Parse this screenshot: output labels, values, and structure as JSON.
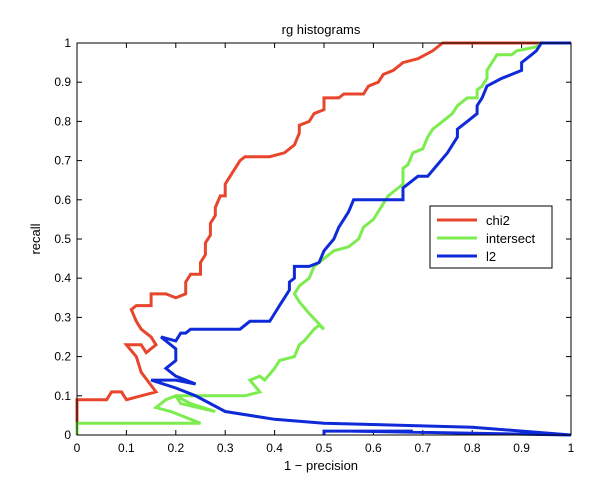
{
  "chart_data": {
    "type": "line",
    "title": "rg histograms",
    "xlabel": "1 − precision",
    "ylabel": "recall",
    "xlim": [
      0,
      1
    ],
    "ylim": [
      0,
      1
    ],
    "xticks": [
      "0",
      "0.1",
      "0.2",
      "0.3",
      "0.4",
      "0.5",
      "0.6",
      "0.7",
      "0.8",
      "0.9",
      "1"
    ],
    "yticks": [
      "0",
      "0.1",
      "0.2",
      "0.3",
      "0.4",
      "0.5",
      "0.6",
      "0.7",
      "0.8",
      "0.9",
      "1"
    ],
    "grid": false,
    "legend_position": "right",
    "series": [
      {
        "name": "chi2",
        "color": "#e8452d",
        "points": [
          [
            0.0,
            0.0
          ],
          [
            0.0,
            0.09
          ],
          [
            0.06,
            0.09
          ],
          [
            0.07,
            0.11
          ],
          [
            0.09,
            0.11
          ],
          [
            0.1,
            0.09
          ],
          [
            0.16,
            0.11
          ],
          [
            0.13,
            0.16
          ],
          [
            0.12,
            0.2
          ],
          [
            0.1,
            0.23
          ],
          [
            0.13,
            0.23
          ],
          [
            0.14,
            0.21
          ],
          [
            0.16,
            0.23
          ],
          [
            0.15,
            0.25
          ],
          [
            0.13,
            0.27
          ],
          [
            0.12,
            0.29
          ],
          [
            0.11,
            0.32
          ],
          [
            0.12,
            0.33
          ],
          [
            0.15,
            0.33
          ],
          [
            0.15,
            0.36
          ],
          [
            0.18,
            0.36
          ],
          [
            0.2,
            0.35
          ],
          [
            0.22,
            0.36
          ],
          [
            0.22,
            0.39
          ],
          [
            0.23,
            0.41
          ],
          [
            0.25,
            0.41
          ],
          [
            0.25,
            0.44
          ],
          [
            0.26,
            0.46
          ],
          [
            0.26,
            0.49
          ],
          [
            0.27,
            0.51
          ],
          [
            0.27,
            0.54
          ],
          [
            0.28,
            0.56
          ],
          [
            0.28,
            0.58
          ],
          [
            0.29,
            0.61
          ],
          [
            0.3,
            0.61
          ],
          [
            0.3,
            0.64
          ],
          [
            0.31,
            0.66
          ],
          [
            0.32,
            0.68
          ],
          [
            0.33,
            0.7
          ],
          [
            0.34,
            0.71
          ],
          [
            0.39,
            0.71
          ],
          [
            0.42,
            0.72
          ],
          [
            0.44,
            0.74
          ],
          [
            0.45,
            0.77
          ],
          [
            0.45,
            0.79
          ],
          [
            0.47,
            0.8
          ],
          [
            0.48,
            0.82
          ],
          [
            0.5,
            0.83
          ],
          [
            0.5,
            0.86
          ],
          [
            0.53,
            0.86
          ],
          [
            0.54,
            0.87
          ],
          [
            0.58,
            0.87
          ],
          [
            0.59,
            0.89
          ],
          [
            0.61,
            0.9
          ],
          [
            0.62,
            0.92
          ],
          [
            0.64,
            0.93
          ],
          [
            0.66,
            0.95
          ],
          [
            0.69,
            0.96
          ],
          [
            0.72,
            0.98
          ],
          [
            0.74,
            1.0
          ],
          [
            1.0,
            1.0
          ]
        ]
      },
      {
        "name": "intersect",
        "color": "#7cec4f",
        "points": [
          [
            0.0,
            0.0
          ],
          [
            0.0,
            0.03
          ],
          [
            0.25,
            0.03
          ],
          [
            0.19,
            0.06
          ],
          [
            0.16,
            0.07
          ],
          [
            0.18,
            0.09
          ],
          [
            0.2,
            0.1
          ],
          [
            0.21,
            0.08
          ],
          [
            0.28,
            0.06
          ],
          [
            0.23,
            0.08
          ],
          [
            0.2,
            0.1
          ],
          [
            0.34,
            0.1
          ],
          [
            0.37,
            0.11
          ],
          [
            0.35,
            0.14
          ],
          [
            0.37,
            0.15
          ],
          [
            0.38,
            0.14
          ],
          [
            0.4,
            0.17
          ],
          [
            0.41,
            0.19
          ],
          [
            0.44,
            0.2
          ],
          [
            0.45,
            0.23
          ],
          [
            0.46,
            0.24
          ],
          [
            0.48,
            0.27
          ],
          [
            0.49,
            0.28
          ],
          [
            0.5,
            0.27
          ],
          [
            0.47,
            0.31
          ],
          [
            0.45,
            0.34
          ],
          [
            0.44,
            0.36
          ],
          [
            0.45,
            0.38
          ],
          [
            0.47,
            0.4
          ],
          [
            0.48,
            0.43
          ],
          [
            0.5,
            0.45
          ],
          [
            0.52,
            0.47
          ],
          [
            0.55,
            0.48
          ],
          [
            0.57,
            0.5
          ],
          [
            0.58,
            0.53
          ],
          [
            0.6,
            0.55
          ],
          [
            0.61,
            0.57
          ],
          [
            0.62,
            0.59
          ],
          [
            0.63,
            0.61
          ],
          [
            0.65,
            0.63
          ],
          [
            0.66,
            0.64
          ],
          [
            0.66,
            0.68
          ],
          [
            0.67,
            0.69
          ],
          [
            0.68,
            0.72
          ],
          [
            0.7,
            0.73
          ],
          [
            0.71,
            0.76
          ],
          [
            0.72,
            0.78
          ],
          [
            0.74,
            0.8
          ],
          [
            0.76,
            0.82
          ],
          [
            0.77,
            0.84
          ],
          [
            0.79,
            0.86
          ],
          [
            0.81,
            0.86
          ],
          [
            0.81,
            0.88
          ],
          [
            0.82,
            0.89
          ],
          [
            0.83,
            0.91
          ],
          [
            0.83,
            0.93
          ],
          [
            0.84,
            0.95
          ],
          [
            0.85,
            0.97
          ],
          [
            0.88,
            0.97
          ],
          [
            0.89,
            0.98
          ],
          [
            0.93,
            0.99
          ],
          [
            0.94,
            1.0
          ]
        ]
      },
      {
        "name": "l2",
        "color": "#0f2ad8",
        "points": [
          [
            0.5,
            0.0
          ],
          [
            0.5,
            0.01
          ],
          [
            0.6,
            0.01
          ],
          [
            0.68,
            0.01
          ],
          [
            0.55,
            0.01
          ],
          [
            1.0,
            0.0
          ],
          [
            0.8,
            0.02
          ],
          [
            0.5,
            0.03
          ],
          [
            0.4,
            0.04
          ],
          [
            0.3,
            0.06
          ],
          [
            0.24,
            0.1
          ],
          [
            0.2,
            0.12
          ],
          [
            0.15,
            0.14
          ],
          [
            0.2,
            0.14
          ],
          [
            0.24,
            0.13
          ],
          [
            0.2,
            0.15
          ],
          [
            0.18,
            0.17
          ],
          [
            0.2,
            0.19
          ],
          [
            0.2,
            0.22
          ],
          [
            0.17,
            0.25
          ],
          [
            0.2,
            0.24
          ],
          [
            0.21,
            0.26
          ],
          [
            0.22,
            0.26
          ],
          [
            0.23,
            0.27
          ],
          [
            0.33,
            0.27
          ],
          [
            0.35,
            0.29
          ],
          [
            0.39,
            0.29
          ],
          [
            0.4,
            0.31
          ],
          [
            0.41,
            0.33
          ],
          [
            0.42,
            0.35
          ],
          [
            0.43,
            0.37
          ],
          [
            0.43,
            0.39
          ],
          [
            0.44,
            0.4
          ],
          [
            0.44,
            0.43
          ],
          [
            0.47,
            0.43
          ],
          [
            0.49,
            0.44
          ],
          [
            0.5,
            0.47
          ],
          [
            0.52,
            0.5
          ],
          [
            0.53,
            0.53
          ],
          [
            0.54,
            0.55
          ],
          [
            0.55,
            0.57
          ],
          [
            0.56,
            0.6
          ],
          [
            0.65,
            0.6
          ],
          [
            0.66,
            0.6
          ],
          [
            0.66,
            0.63
          ],
          [
            0.67,
            0.64
          ],
          [
            0.69,
            0.66
          ],
          [
            0.71,
            0.66
          ],
          [
            0.73,
            0.69
          ],
          [
            0.75,
            0.72
          ],
          [
            0.76,
            0.74
          ],
          [
            0.77,
            0.76
          ],
          [
            0.77,
            0.78
          ],
          [
            0.79,
            0.8
          ],
          [
            0.81,
            0.82
          ],
          [
            0.81,
            0.84
          ],
          [
            0.82,
            0.86
          ],
          [
            0.83,
            0.89
          ],
          [
            0.86,
            0.91
          ],
          [
            0.88,
            0.92
          ],
          [
            0.9,
            0.93
          ],
          [
            0.9,
            0.95
          ],
          [
            0.92,
            0.97
          ],
          [
            0.93,
            0.98
          ],
          [
            0.94,
            1.0
          ],
          [
            1.0,
            1.0
          ]
        ]
      }
    ]
  }
}
